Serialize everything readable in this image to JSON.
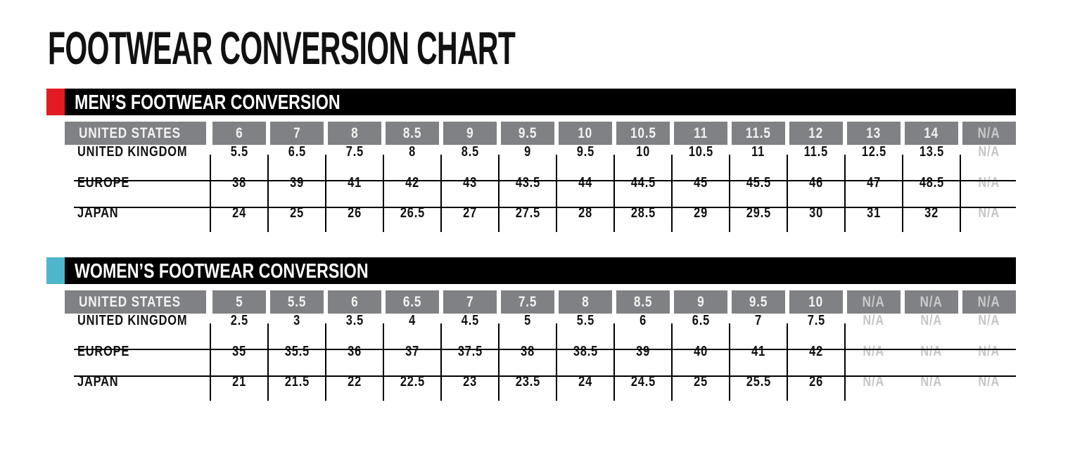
{
  "title": "FOOTWEAR CONVERSION CHART",
  "colors": {
    "men_accent": "#e31b23",
    "women_accent": "#4db6cc",
    "header_gray": "#808184"
  },
  "sections": [
    {
      "title": "MEN’S FOOTWEAR CONVERSION",
      "header": {
        "label": "UNITED STATES",
        "values": [
          "6",
          "7",
          "8",
          "8.5",
          "9",
          "9.5",
          "10",
          "10.5",
          "11",
          "11.5",
          "12",
          "13",
          "14",
          "N/A"
        ]
      },
      "rows": [
        {
          "label": "UNITED KINGDOM",
          "values": [
            "5.5",
            "6.5",
            "7.5",
            "8",
            "8.5",
            "9",
            "9.5",
            "10",
            "10.5",
            "11",
            "11.5",
            "12.5",
            "13.5",
            "N/A"
          ]
        },
        {
          "label": "EUROPE",
          "values": [
            "38",
            "39",
            "41",
            "42",
            "43",
            "43.5",
            "44",
            "44.5",
            "45",
            "45.5",
            "46",
            "47",
            "48.5",
            "N/A"
          ]
        },
        {
          "label": "JAPAN",
          "values": [
            "24",
            "25",
            "26",
            "26.5",
            "27",
            "27.5",
            "28",
            "28.5",
            "29",
            "29.5",
            "30",
            "31",
            "32",
            "N/A"
          ]
        }
      ]
    },
    {
      "title": "WOMEN’S FOOTWEAR CONVERSION",
      "header": {
        "label": "UNITED STATES",
        "values": [
          "5",
          "5.5",
          "6",
          "6.5",
          "7",
          "7.5",
          "8",
          "8.5",
          "9",
          "9.5",
          "10",
          "N/A",
          "N/A",
          "N/A"
        ]
      },
      "rows": [
        {
          "label": "UNITED KINGDOM",
          "values": [
            "2.5",
            "3",
            "3.5",
            "4",
            "4.5",
            "5",
            "5.5",
            "6",
            "6.5",
            "7",
            "7.5",
            "N/A",
            "N/A",
            "N/A"
          ]
        },
        {
          "label": "EUROPE",
          "values": [
            "35",
            "35.5",
            "36",
            "37",
            "37.5",
            "38",
            "38.5",
            "39",
            "40",
            "41",
            "42",
            "N/A",
            "N/A",
            "N/A"
          ]
        },
        {
          "label": "JAPAN",
          "values": [
            "21",
            "21.5",
            "22",
            "22.5",
            "23",
            "23.5",
            "24",
            "24.5",
            "25",
            "25.5",
            "26",
            "N/A",
            "N/A",
            "N/A"
          ]
        }
      ]
    }
  ]
}
